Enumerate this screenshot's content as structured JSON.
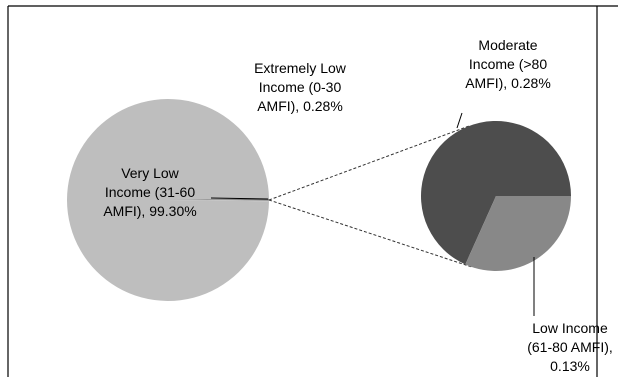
{
  "chart_data": {
    "type": "pie",
    "subtype": "pie-of-pie",
    "slices": [
      {
        "label": "Very Low Income (31-60 AMFI)",
        "value": 99.3,
        "value_label": "99.30%",
        "label_lines": [
          "Very Low",
          "Income (31-60",
          "AMFI), 99.30%"
        ],
        "color": "#bebebe"
      },
      {
        "label": "Extremely Low Income (0-30 AMFI)",
        "value": 0.28,
        "value_label": "0.28%",
        "label_lines": [
          "Extremely Low",
          "Income (0-30",
          "AMFI), 0.28%"
        ],
        "color": "#7a7a7a"
      },
      {
        "label": "Moderate Income (>80 AMFI)",
        "value": 0.28,
        "value_label": "0.28%",
        "label_lines": [
          "Moderate",
          "Income (>80",
          "AMFI), 0.28%"
        ],
        "color": "#4d4d4d"
      },
      {
        "label": "Low Income (61-80 AMFI)",
        "value": 0.13,
        "value_label": "0.13%",
        "label_lines": [
          "Low Income",
          "(61-80 AMFI),",
          "0.13%"
        ],
        "color": "#888888"
      }
    ],
    "secondary_pie": [
      "Moderate Income (>80 AMFI)",
      "Low Income (61-80 AMFI)"
    ],
    "colors": {
      "main_pie": "#bebebe",
      "secondary_dark": "#4d4d4d",
      "secondary_light": "#888888",
      "leader_line": "#000000",
      "connector_line": "#333333",
      "frame": "#000000"
    }
  }
}
